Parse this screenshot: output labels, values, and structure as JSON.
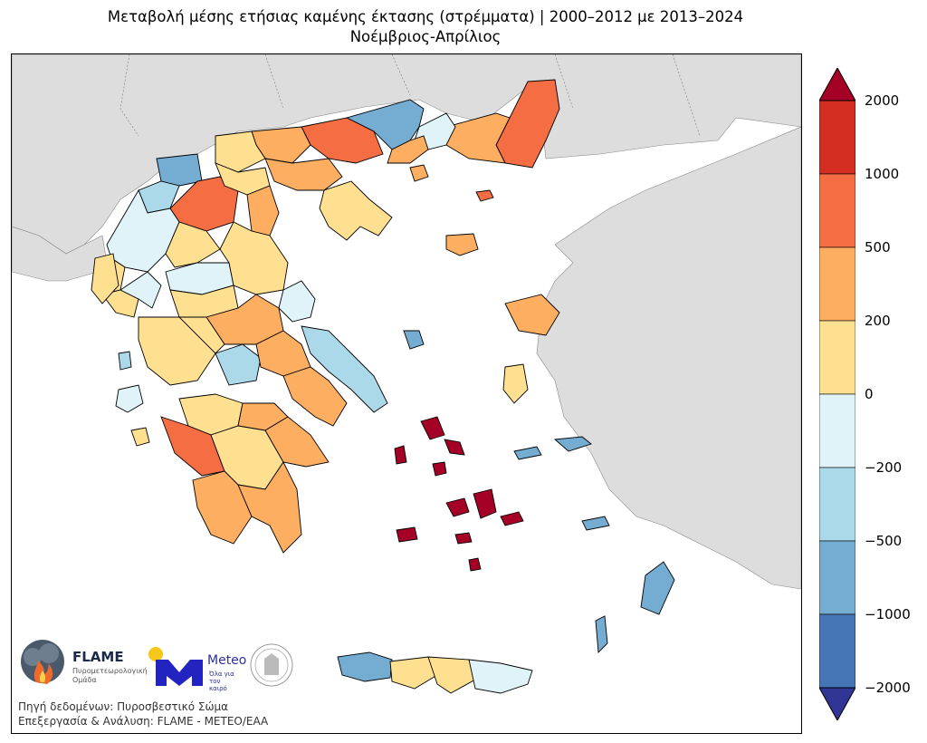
{
  "title": {
    "line1": "Μεταβολή μέσης ετήσιας καμένης έκτασης (στρέμματα) | 2000–2012 με 2013–2024",
    "line2": "Νοέμβριος-Απρίλιος"
  },
  "colorbar": {
    "ticks": [
      "2000",
      "1000",
      "500",
      "200",
      "0",
      "−200",
      "−500",
      "−1000",
      "−2000"
    ],
    "colors": [
      "#d42e22",
      "#f46d43",
      "#fdae61",
      "#fee090",
      "#e0f3f8",
      "#abd9e9",
      "#74add1",
      "#4575b4"
    ],
    "over_color": "#a50026",
    "under_color": "#313695"
  },
  "map": {
    "land_color": "#dddddd",
    "sea_color": "#ffffff",
    "border_color": "#000000"
  },
  "logos": {
    "flame_name": "FLAME",
    "flame_sub": "Πυρομετεωρολογική Ομάδα",
    "meteo_name": "Meteo",
    "meteo_sub": "Όλα για τον καιρό"
  },
  "source": {
    "line1": "Πηγή δεδομένων: Πυροσβεστικό Σώμα",
    "line2": "Επεξεργασία & Ανάλυση: FLAME - METEO/EAA"
  }
}
